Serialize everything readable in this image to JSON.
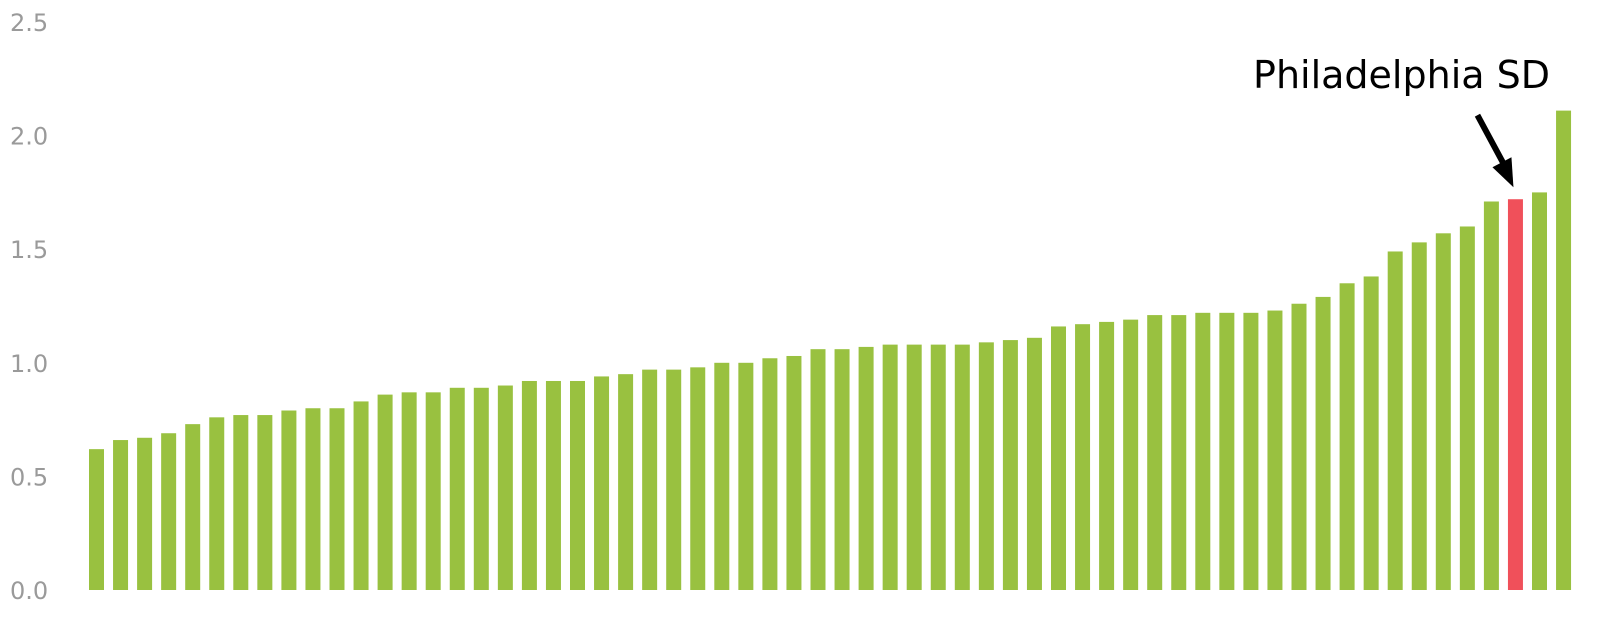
{
  "chart_data": {
    "type": "bar",
    "title": "",
    "xlabel": "",
    "ylabel": "",
    "ylim": [
      0,
      2.5
    ],
    "yticks": [
      "0.0",
      "0.5",
      "1.0",
      "1.5",
      "2.0",
      "2.5"
    ],
    "grid": false,
    "legend": "none",
    "colors": {
      "bar": "#99c140",
      "highlight": "#f0505a"
    },
    "values": [
      0.62,
      0.66,
      0.67,
      0.69,
      0.73,
      0.76,
      0.77,
      0.77,
      0.79,
      0.8,
      0.8,
      0.83,
      0.86,
      0.87,
      0.87,
      0.89,
      0.89,
      0.9,
      0.92,
      0.92,
      0.92,
      0.94,
      0.95,
      0.97,
      0.97,
      0.98,
      1.0,
      1.0,
      1.02,
      1.03,
      1.06,
      1.06,
      1.07,
      1.08,
      1.08,
      1.08,
      1.08,
      1.09,
      1.1,
      1.11,
      1.16,
      1.17,
      1.18,
      1.19,
      1.21,
      1.21,
      1.22,
      1.22,
      1.22,
      1.23,
      1.26,
      1.29,
      1.35,
      1.38,
      1.49,
      1.53,
      1.57,
      1.6,
      1.71,
      1.72,
      1.75,
      2.11
    ],
    "highlight_index": 59,
    "annotation": {
      "text": "Philadelphia SD"
    }
  }
}
